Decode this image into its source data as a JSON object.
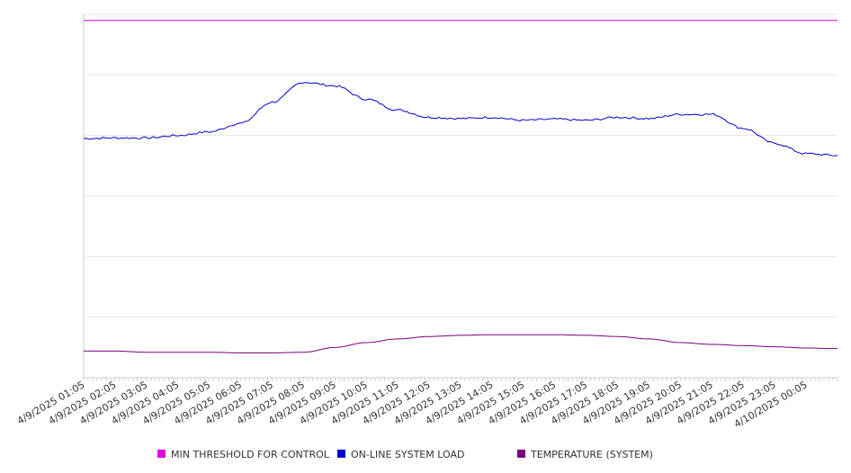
{
  "chart_data": {
    "type": "line",
    "title": "",
    "xlabel": "",
    "ylabel": "",
    "grid": true,
    "legend_placement": "bottom",
    "x_tick_labels": [
      "4/9/2025 01:05",
      "4/9/2025 02:05",
      "4/9/2025 03:05",
      "4/9/2025 04:05",
      "4/9/2025 05:05",
      "4/9/2025 06:05",
      "4/9/2025 07:05",
      "4/9/2025 08:05",
      "4/9/2025 09:05",
      "4/9/2025 10:05",
      "4/9/2025 11:05",
      "4/9/2025 12:05",
      "4/9/2025 13:05",
      "4/9/2025 14:05",
      "4/9/2025 15:05",
      "4/9/2025 16:05",
      "4/9/2025 17:05",
      "4/9/2025 18:05",
      "4/9/2025 19:05",
      "4/9/2025 20:05",
      "4/9/2025 21:05",
      "4/9/2025 22:05",
      "4/9/2025 23:05",
      "4/10/2025 00:05"
    ],
    "ylim": [
      0,
      6
    ],
    "y_tick_labels_visible": false,
    "series": [
      {
        "name": "MIN THRESHOLD FOR CONTROL",
        "color": "#e000e0",
        "values": [
          5.9,
          5.9,
          5.9,
          5.9,
          5.9,
          5.9,
          5.9,
          5.9,
          5.9,
          5.9,
          5.9,
          5.9,
          5.9,
          5.9,
          5.9,
          5.9,
          5.9,
          5.9,
          5.9,
          5.9,
          5.9,
          5.9,
          5.9,
          5.9,
          5.9
        ]
      },
      {
        "name": "ON-LINE SYSTEM LOAD",
        "color": "#0000cc",
        "values": [
          3.95,
          3.96,
          3.96,
          4.0,
          4.06,
          4.2,
          4.55,
          4.88,
          4.82,
          4.6,
          4.42,
          4.3,
          4.28,
          4.3,
          4.25,
          4.27,
          4.25,
          4.3,
          4.28,
          4.35,
          4.35,
          4.12,
          3.87,
          3.7,
          3.67
        ]
      },
      {
        "name": "TEMPERATURE (SYSTEM)",
        "color": "#7b007b",
        "values": [
          0.44,
          0.44,
          0.42,
          0.42,
          0.42,
          0.41,
          0.41,
          0.42,
          0.5,
          0.58,
          0.64,
          0.68,
          0.7,
          0.71,
          0.71,
          0.71,
          0.7,
          0.68,
          0.64,
          0.58,
          0.55,
          0.53,
          0.51,
          0.49,
          0.48
        ]
      }
    ]
  },
  "legend": {
    "items": [
      {
        "label": "MIN THRESHOLD FOR CONTROL",
        "color": "#e000e0"
      },
      {
        "label": "ON-LINE SYSTEM LOAD",
        "color": "#0000cc"
      },
      {
        "label": "TEMPERATURE (SYSTEM)",
        "color": "#7b007b"
      }
    ]
  }
}
